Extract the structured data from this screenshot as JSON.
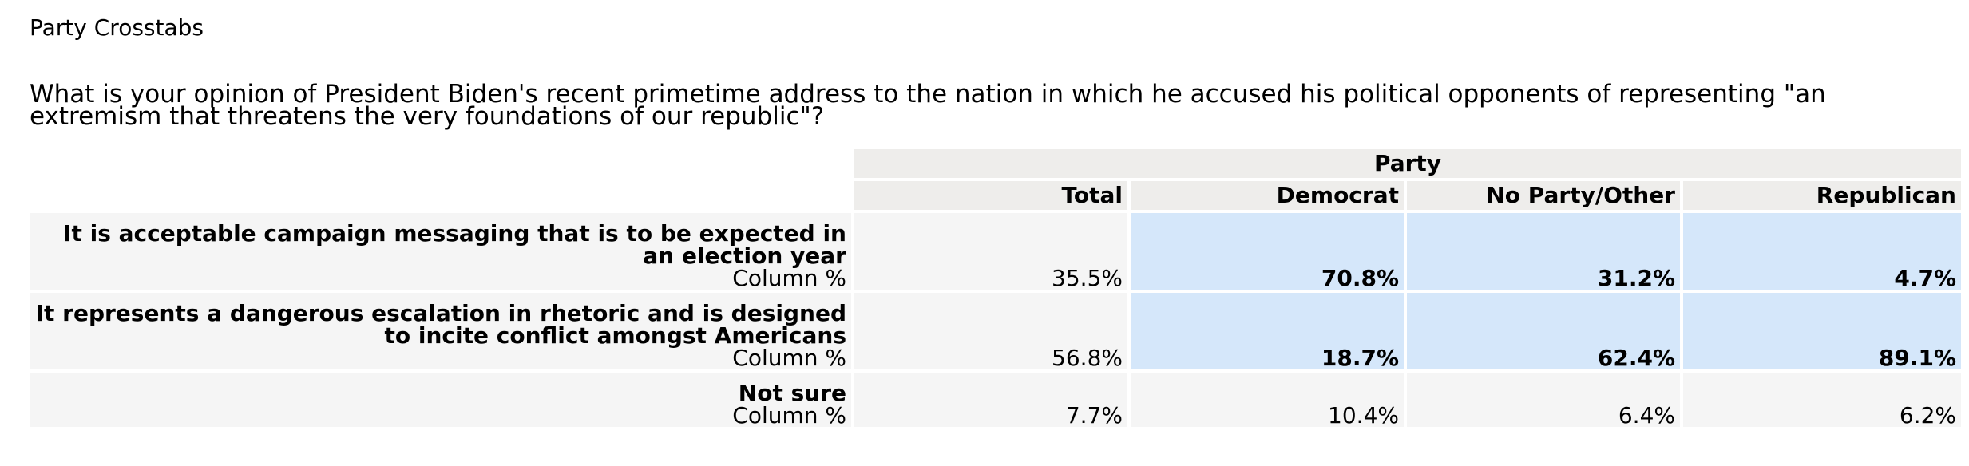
{
  "report_title": "Party Crosstabs",
  "question": "What is your opinion of President Biden's recent primetime address to the nation in which he accused his political opponents of representing \"an extremism that threatens the very foundations of our republic\"?",
  "table": {
    "group_header": "Party",
    "columns": [
      "Total",
      "Democrat",
      "No Party/Other",
      "Republican"
    ],
    "rows": [
      {
        "label": "It is acceptable campaign messaging that is to be expected in an election year",
        "sublabel": "Column %",
        "values": [
          "35.5%",
          "70.8%",
          "31.2%",
          "4.7%"
        ]
      },
      {
        "label": "It represents a dangerous escalation in rhetoric and is designed to incite conflict amongst Americans",
        "sublabel": "Column %",
        "values": [
          "56.8%",
          "18.7%",
          "62.4%",
          "89.1%"
        ]
      },
      {
        "label": "Not sure",
        "sublabel": "Column %",
        "values": [
          "7.7%",
          "10.4%",
          "6.4%",
          "6.2%"
        ]
      }
    ],
    "highlight_color": "#d5e7fa",
    "header_color": "#eeedeb",
    "row_color": "#f5f5f5"
  }
}
